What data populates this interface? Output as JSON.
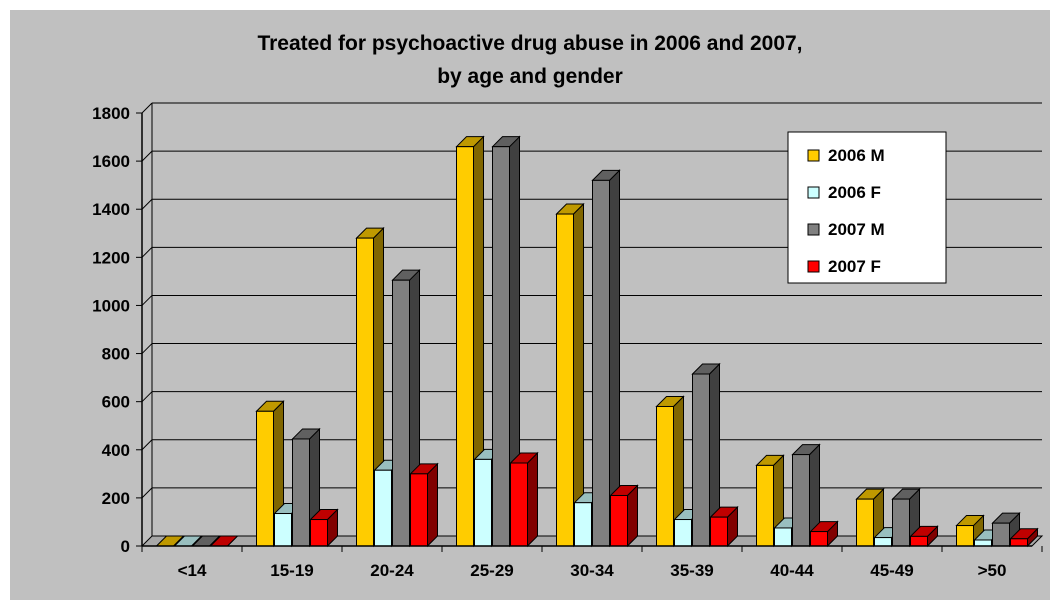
{
  "chart_data": {
    "type": "bar",
    "title_lines": [
      "Treated for psychoactive drug abuse in 2006 and 2007,",
      "by age and gender"
    ],
    "xlabel": "",
    "ylabel": "",
    "categories": [
      "<14",
      "15-19",
      "20-24",
      "25-29",
      "30-34",
      "35-39",
      "40-44",
      "45-49",
      ">50"
    ],
    "series": [
      {
        "name": "2006 M",
        "color": "#ffcc00",
        "values": [
          0,
          560,
          1280,
          1660,
          1380,
          580,
          335,
          195,
          85
        ]
      },
      {
        "name": "2006 F",
        "color": "#ccffff",
        "values": [
          0,
          135,
          315,
          360,
          180,
          110,
          75,
          35,
          25
        ]
      },
      {
        "name": "2007 M",
        "color": "#808080",
        "values": [
          0,
          445,
          1105,
          1660,
          1520,
          715,
          380,
          195,
          95
        ]
      },
      {
        "name": "2007 F",
        "color": "#ff0000",
        "values": [
          0,
          110,
          300,
          345,
          210,
          120,
          60,
          40,
          30
        ]
      }
    ],
    "ylim": [
      0,
      1800
    ],
    "yticks": [
      0,
      200,
      400,
      600,
      800,
      1000,
      1200,
      1400,
      1600,
      1800
    ],
    "grid": true,
    "legend_position": "top-right",
    "style": "3d-bar"
  }
}
